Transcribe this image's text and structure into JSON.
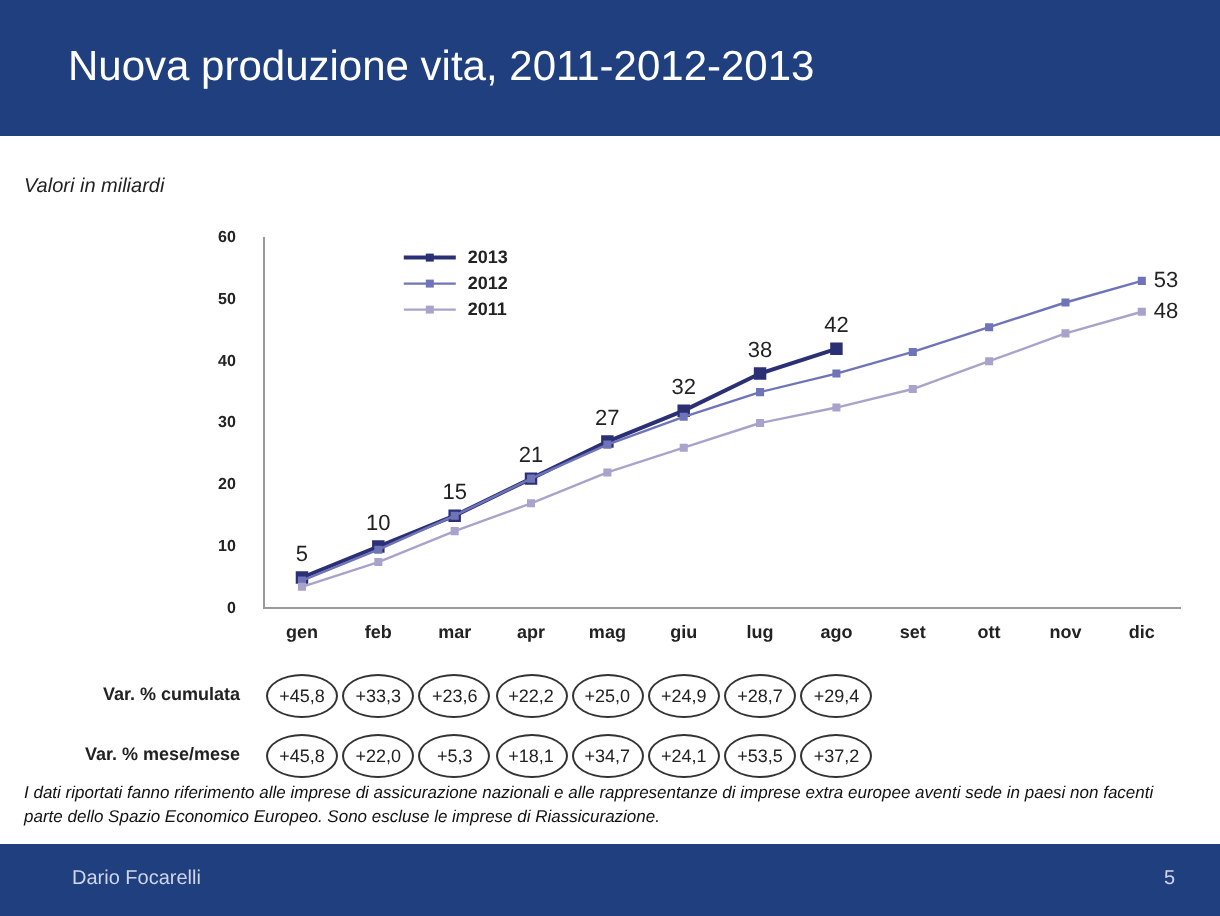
{
  "chart_data": {
    "type": "line",
    "title": "Nuova produzione vita, 2011-2012-2013",
    "subtitle": "Valori in miliardi",
    "categories": [
      "gen",
      "feb",
      "mar",
      "apr",
      "mag",
      "giu",
      "lug",
      "ago",
      "set",
      "ott",
      "nov",
      "dic"
    ],
    "series": [
      {
        "name": "2013",
        "color": "#2b3075",
        "values": [
          5,
          10,
          15,
          21,
          27,
          32,
          38,
          42,
          null,
          null,
          null,
          null
        ],
        "value_labels": [
          "5",
          "10",
          "15",
          "21",
          "27",
          "32",
          "38",
          "42",
          null,
          null,
          null,
          null
        ]
      },
      {
        "name": "2012",
        "color": "#6f74b8",
        "values": [
          4.5,
          9.5,
          15,
          21,
          26.5,
          31,
          35,
          38,
          41.5,
          45.5,
          49.5,
          53
        ],
        "value_labels": [
          null,
          null,
          null,
          null,
          null,
          null,
          null,
          null,
          null,
          null,
          null,
          "53"
        ]
      },
      {
        "name": "2011",
        "color": "#a9a3cc",
        "values": [
          3.5,
          7.5,
          12.5,
          17,
          22,
          26,
          30,
          32.5,
          35.5,
          40,
          44.5,
          48
        ],
        "value_labels": [
          null,
          null,
          null,
          null,
          null,
          null,
          null,
          null,
          null,
          null,
          null,
          "48"
        ]
      }
    ],
    "ylim": [
      0,
      60
    ],
    "yticks": [
      0,
      10,
      20,
      30,
      40,
      50,
      60
    ],
    "grid": false,
    "legend": "top left",
    "marker": "square",
    "line_style": "solid",
    "annotations": [
      "Var. % cumulata",
      "+45,8",
      "+33,3",
      "+23,6",
      "+22,2",
      "+25,0",
      "+24,9",
      "+28,7",
      "+29,4",
      "Var. % mese/mese",
      "+45,8",
      "+22,0",
      "+5,3",
      "+18,1",
      "+34,7",
      "+24,1",
      "+53,5",
      "+37,2",
      "I dati riportati fanno riferimento alle imprese di assicurazione nazionali e alle rappresentanze di imprese extra europee aventi sede in paesi non facenti parte dello Spazio Economico Europeo. Sono escluse le imprese di Riassicurazione.",
      "Dario Focarelli",
      "5"
    ]
  }
}
